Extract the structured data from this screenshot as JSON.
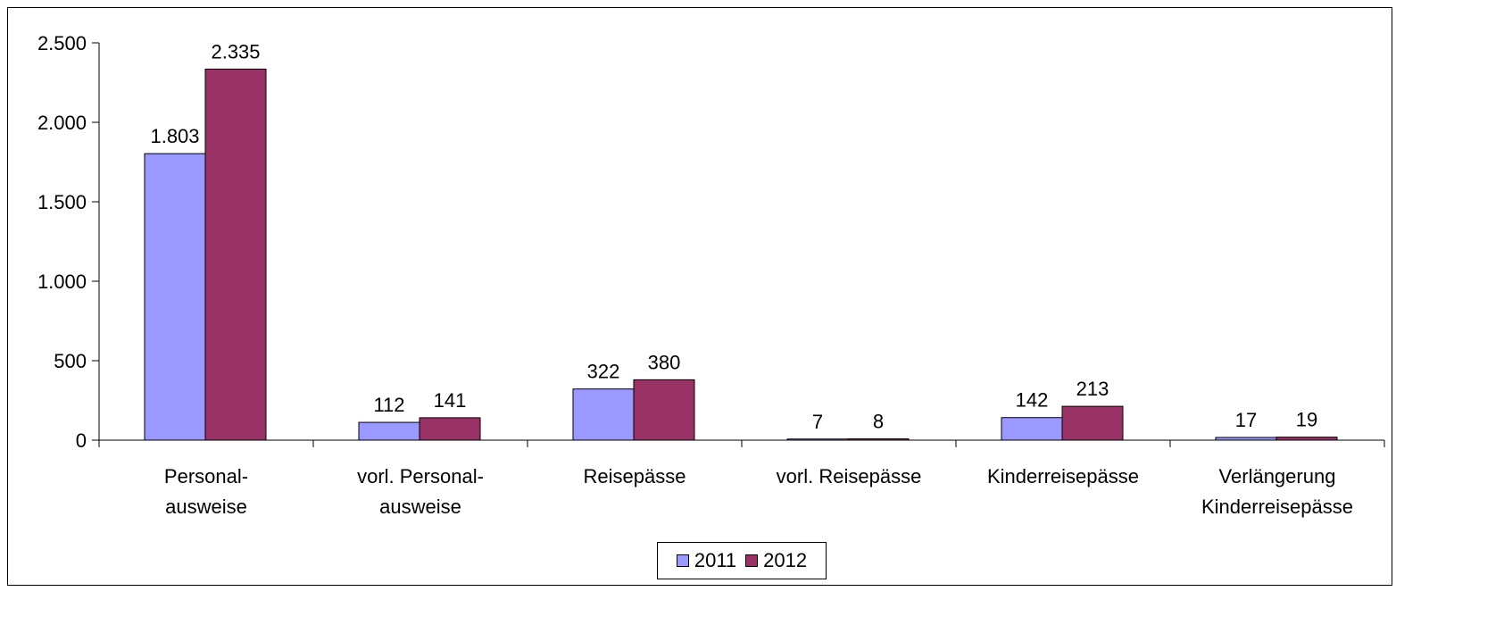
{
  "chart_data": {
    "type": "bar",
    "categories": [
      [
        "Personal-",
        "ausweise"
      ],
      [
        "vorl. Personal-",
        "ausweise"
      ],
      [
        "Reisepässe"
      ],
      [
        "vorl. Reisepässe"
      ],
      [
        "Kinderreisepässe"
      ],
      [
        "Verlängerung",
        "Kinderreisepässe"
      ]
    ],
    "series": [
      {
        "name": "2011",
        "color": "#9999FF",
        "values": [
          1803,
          112,
          322,
          7,
          142,
          17
        ],
        "labels": [
          "1.803",
          "112",
          "322",
          "7",
          "142",
          "17"
        ]
      },
      {
        "name": "2012",
        "color": "#993366",
        "values": [
          2335,
          141,
          380,
          8,
          213,
          19
        ],
        "labels": [
          "2.335",
          "141",
          "380",
          "8",
          "213",
          "19"
        ]
      }
    ],
    "ylim": [
      0,
      2500
    ],
    "yticks": [
      0,
      500,
      1000,
      1500,
      2000,
      2500
    ],
    "ytick_labels": [
      "0",
      "500",
      "1.000",
      "1.500",
      "2.000",
      "2.500"
    ],
    "title": "",
    "xlabel": "",
    "ylabel": "",
    "grid": false,
    "legend_position": "bottom"
  }
}
